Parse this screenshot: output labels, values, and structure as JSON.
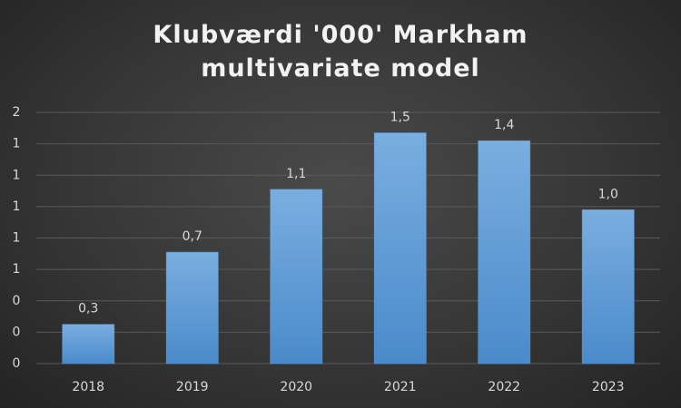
{
  "chart_data": {
    "type": "bar",
    "title": "Klubværdi '000' Markham multivariate model",
    "categories": [
      "2018",
      "2019",
      "2020",
      "2021",
      "2022",
      "2023"
    ],
    "values": [
      0.25,
      0.71,
      1.11,
      1.47,
      1.42,
      0.98
    ],
    "value_labels": [
      "0,3",
      "0,7",
      "1,1",
      "1,5",
      "1,4",
      "1,0"
    ],
    "color": "#5b9bd5",
    "ylim": [
      0,
      1.6
    ],
    "yticks": [
      0,
      {
        "value": 0.2,
        "label": "0"
      },
      {
        "value": 0.4,
        "label": "0"
      },
      {
        "value": 0.6,
        "label": "1"
      },
      {
        "value": 0.8,
        "label": "1"
      },
      1,
      {
        "value": 1.2,
        "label": "1"
      },
      {
        "value": 1.4,
        "label": "1"
      },
      {
        "value": 1.6,
        "label": "2"
      }
    ],
    "grid": true
  }
}
